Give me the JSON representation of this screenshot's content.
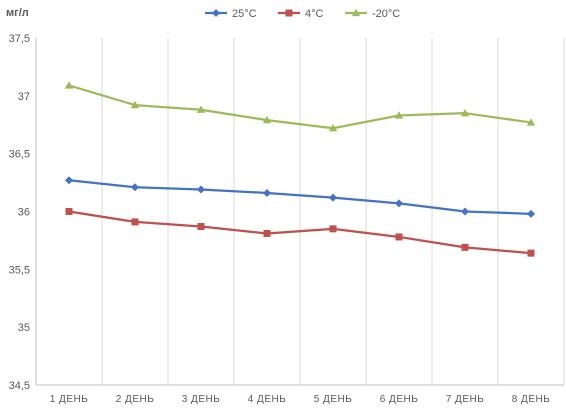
{
  "chart_data": {
    "type": "line",
    "unit_label": "мг/л",
    "categories": [
      "1 ДЕНЬ",
      "2 ДЕНЬ",
      "3 ДЕНЬ",
      "4 ДЕНЬ",
      "5 ДЕНЬ",
      "6 ДЕНЬ",
      "7 ДЕНЬ",
      "8 ДЕНЬ"
    ],
    "ylim": [
      34.5,
      37.5
    ],
    "y_ticks": [
      "34,5",
      "35",
      "35,5",
      "36",
      "36,5",
      "37",
      "37,5"
    ],
    "grid": "vertical",
    "legend_position": "top",
    "series": [
      {
        "name": "25°C",
        "color": "#4472C4",
        "marker": "diamond",
        "values": [
          36.27,
          36.21,
          36.19,
          36.16,
          36.12,
          36.07,
          36.0,
          35.98
        ]
      },
      {
        "name": "4°C",
        "color": "#C0504D",
        "marker": "square",
        "values": [
          36.0,
          35.91,
          35.87,
          35.81,
          35.85,
          35.78,
          35.69,
          35.64
        ]
      },
      {
        "name": "-20°C",
        "color": "#9BBB59",
        "marker": "triangle",
        "values": [
          37.09,
          36.92,
          36.88,
          36.79,
          36.72,
          36.83,
          36.85,
          36.77
        ]
      }
    ]
  }
}
